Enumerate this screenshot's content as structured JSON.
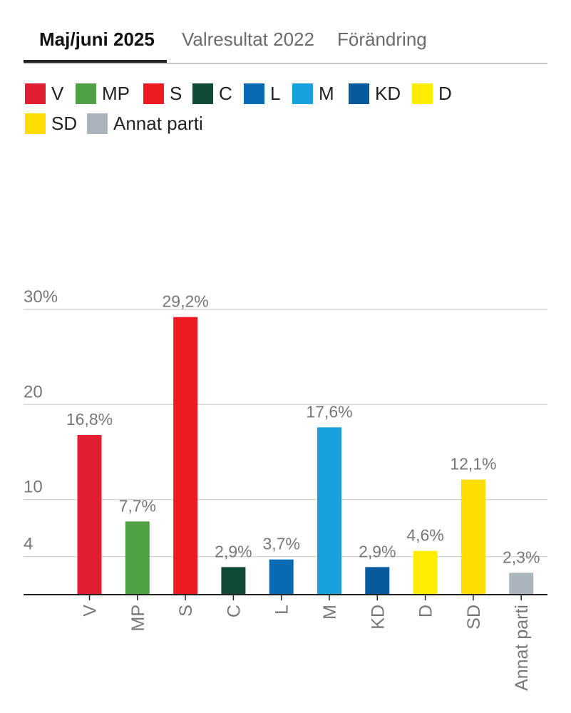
{
  "tabs": [
    {
      "label": "Maj/juni 2025",
      "active": true
    },
    {
      "label": "Valresultat 2022",
      "active": false
    },
    {
      "label": "Förändring",
      "active": false
    }
  ],
  "legend": [
    {
      "label": "V",
      "color": "#e41e32"
    },
    {
      "label": "MP",
      "color": "#4fa244"
    },
    {
      "label": "S",
      "color": "#ed1c24"
    },
    {
      "label": "C",
      "color": "#0f4a36"
    },
    {
      "label": "L",
      "color": "#0a6bb5"
    },
    {
      "label": "M",
      "color": "#16a0de"
    },
    {
      "label": "KD",
      "color": "#075a9c"
    },
    {
      "label": "D",
      "color": "#ffed00"
    },
    {
      "label": "SD",
      "color": "#ffdd00"
    },
    {
      "label": "Annat parti",
      "color": "#aab4bb"
    }
  ],
  "chart_data": {
    "type": "bar",
    "categories": [
      "V",
      "MP",
      "S",
      "C",
      "L",
      "M",
      "KD",
      "D",
      "SD",
      "Annat parti"
    ],
    "values": [
      16.8,
      7.7,
      29.2,
      2.9,
      3.7,
      17.6,
      2.9,
      4.6,
      12.1,
      2.3
    ],
    "value_labels": [
      "16,8%",
      "7,7%",
      "29,2%",
      "2,9%",
      "3,7%",
      "17,6%",
      "2,9%",
      "4,6%",
      "12,1%",
      "2,3%"
    ],
    "colors": [
      "#e41e32",
      "#4fa244",
      "#ed1c24",
      "#0f4a36",
      "#0a6bb5",
      "#16a0de",
      "#075a9c",
      "#ffed00",
      "#ffdd00",
      "#aab4bb"
    ],
    "yticks": [
      {
        "value": 30,
        "label": "30%"
      },
      {
        "value": 20,
        "label": "20"
      },
      {
        "value": 10,
        "label": "10"
      },
      {
        "value": 4,
        "label": "4"
      }
    ],
    "ylim": [
      0,
      30
    ],
    "grid": true,
    "legend": "top"
  }
}
